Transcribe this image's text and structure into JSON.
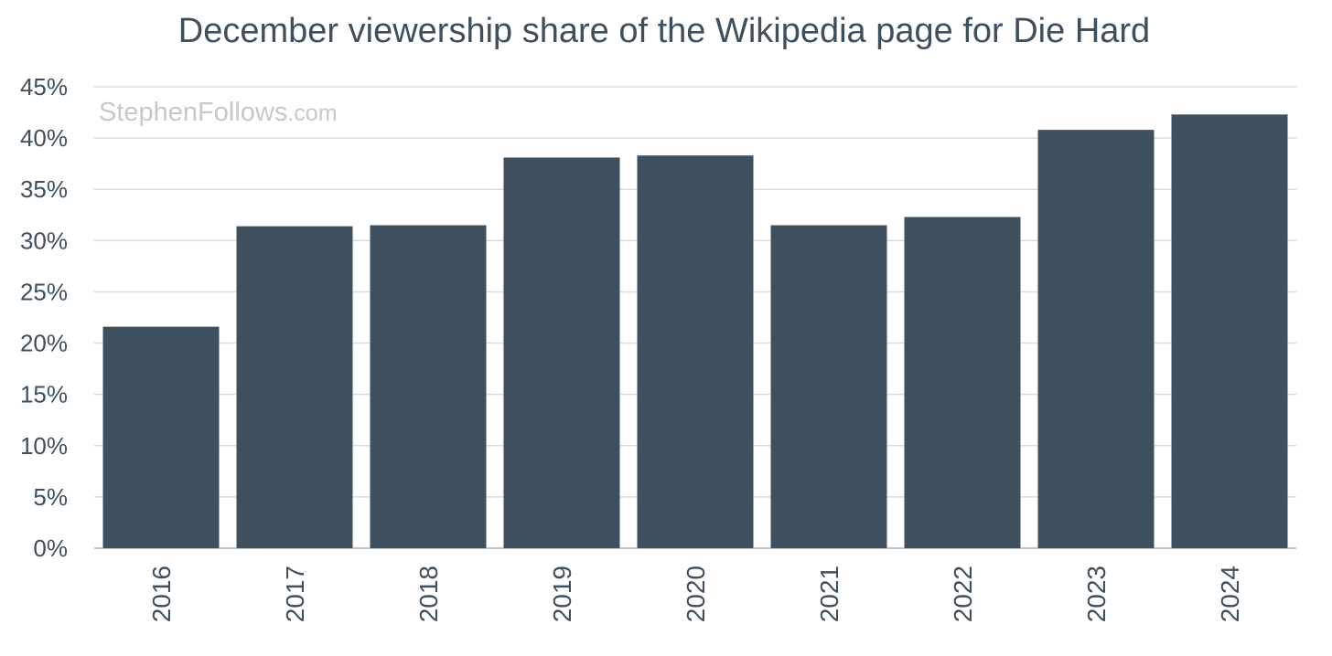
{
  "chart_data": {
    "type": "bar",
    "title": "December viewership share of the Wikipedia page for Die Hard",
    "watermark": {
      "main": "StephenFollows",
      "suffix": ".com"
    },
    "xlabel": "",
    "ylabel": "",
    "categories": [
      "2016",
      "2017",
      "2018",
      "2019",
      "2020",
      "2021",
      "2022",
      "2023",
      "2024"
    ],
    "values": [
      21.6,
      31.4,
      31.5,
      38.1,
      38.3,
      31.5,
      32.3,
      40.8,
      42.3
    ],
    "ylim": [
      0,
      45
    ],
    "yticks": [
      0,
      5,
      10,
      15,
      20,
      25,
      30,
      35,
      40,
      45
    ],
    "ytick_labels": [
      "0%",
      "5%",
      "10%",
      "15%",
      "20%",
      "25%",
      "30%",
      "35%",
      "40%",
      "45%"
    ],
    "grid": true,
    "colors": {
      "bar": "#3e4f5e",
      "text": "#3e4f5e",
      "grid": "#d9dcdf",
      "watermark": "#c8c8c8"
    }
  }
}
